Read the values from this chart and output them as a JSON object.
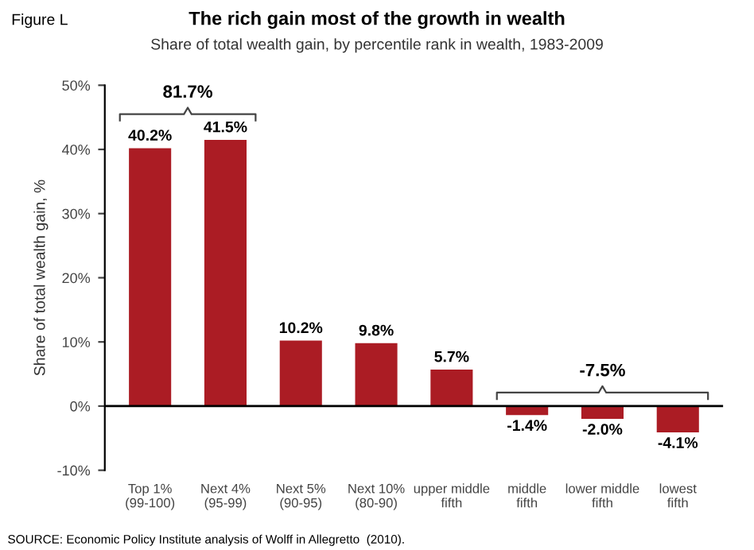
{
  "chart_data": {
    "type": "bar",
    "title": "The rich gain most of the growth in wealth",
    "subtitle": "Share of total wealth gain, by percentile rank in wealth, 1983-2009",
    "ylabel": "Share of total wealth gain, %",
    "categories": [
      "Top 1%\n(99-100)",
      "Next 4%\n(95-99)",
      "Next 5%\n(90-95)",
      "Next 10%\n(80-90)",
      "upper middle\nfifth",
      "middle\nfifth",
      "lower middle\nfifth",
      "lowest\nfifth"
    ],
    "values": [
      40.2,
      41.5,
      10.2,
      9.8,
      5.7,
      -1.4,
      -2.0,
      -4.1
    ],
    "value_labels": [
      "40.2%",
      "41.5%",
      "10.2%",
      "9.8%",
      "5.7%",
      "-1.4%",
      "-2.0%",
      "-4.1%"
    ],
    "color": "#ab1c24",
    "ylim": [
      -10,
      50
    ],
    "yticks": [
      {
        "value": -10,
        "label": "-10%"
      },
      {
        "value": 0,
        "label": "0%"
      },
      {
        "value": 10,
        "label": "10%"
      },
      {
        "value": 20,
        "label": "20%"
      },
      {
        "value": 30,
        "label": "30%"
      },
      {
        "value": 40,
        "label": "40%"
      },
      {
        "value": 50,
        "label": "50%"
      }
    ],
    "ref_lines": [
      {
        "axis": "y",
        "value": 0,
        "color": "#000000"
      }
    ],
    "grid": false,
    "legend": false,
    "annotations": [
      "Figure L",
      "81.7%",
      "-7.5%",
      "SOURCE: Economic Policy Institute analysis of Wolff in Allegretto  (2010)."
    ]
  }
}
